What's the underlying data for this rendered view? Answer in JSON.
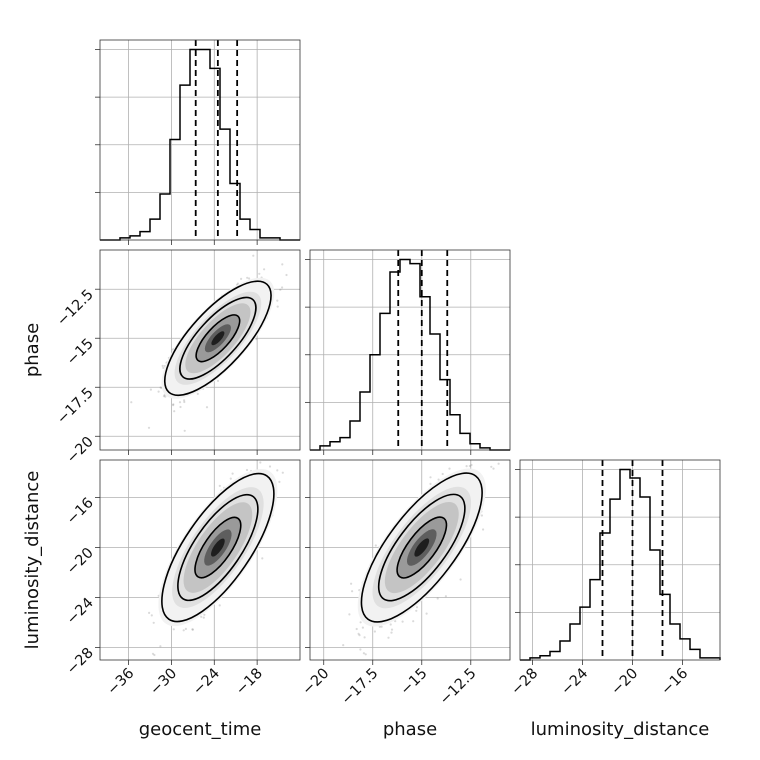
{
  "chart_data": {
    "type": "corner",
    "parameters": [
      {
        "name": "geocent_time",
        "label": "geocent_time",
        "lim": [
          -40,
          -12
        ],
        "ticks": [
          -36,
          -30,
          -24,
          -18
        ],
        "mean": -23.5,
        "sd": 3.0,
        "quantiles": [
          -26.6,
          -23.5,
          -20.8
        ],
        "hist": {
          "start": -40,
          "width": 1.4,
          "counts": [
            0,
            0,
            1,
            2,
            4,
            10,
            22,
            48,
            74,
            91,
            91,
            82,
            53,
            27,
            10,
            5,
            1,
            1,
            0,
            0
          ]
        }
      },
      {
        "name": "phase",
        "label": "phase",
        "lim": [
          -20.7,
          -10.5
        ],
        "ticks": [
          -20.0,
          -17.5,
          -15.0,
          -12.5
        ],
        "mean": -15.0,
        "sd": 1.2,
        "quantiles": [
          -16.2,
          -15.0,
          -13.7
        ],
        "hist": {
          "start": -20.7,
          "width": 0.51,
          "counts": [
            0,
            2,
            4,
            6,
            14,
            28,
            46,
            66,
            86,
            92,
            90,
            74,
            56,
            34,
            17,
            8,
            3,
            1,
            0,
            0
          ]
        }
      },
      {
        "name": "luminosity_distance",
        "label": "luminosity_distance",
        "lim": [
          -29,
          -13
        ],
        "ticks": [
          -28,
          -24,
          -20,
          -16
        ],
        "mean": -20.0,
        "sd": 2.5,
        "quantiles": [
          -22.4,
          -20.0,
          -17.6
        ],
        "hist": {
          "start": -29,
          "width": 0.8,
          "counts": [
            0,
            1,
            2,
            4,
            9,
            17,
            25,
            38,
            60,
            76,
            90,
            86,
            77,
            52,
            31,
            17,
            10,
            5,
            1,
            1
          ]
        }
      }
    ],
    "correlation": 0.75
  }
}
